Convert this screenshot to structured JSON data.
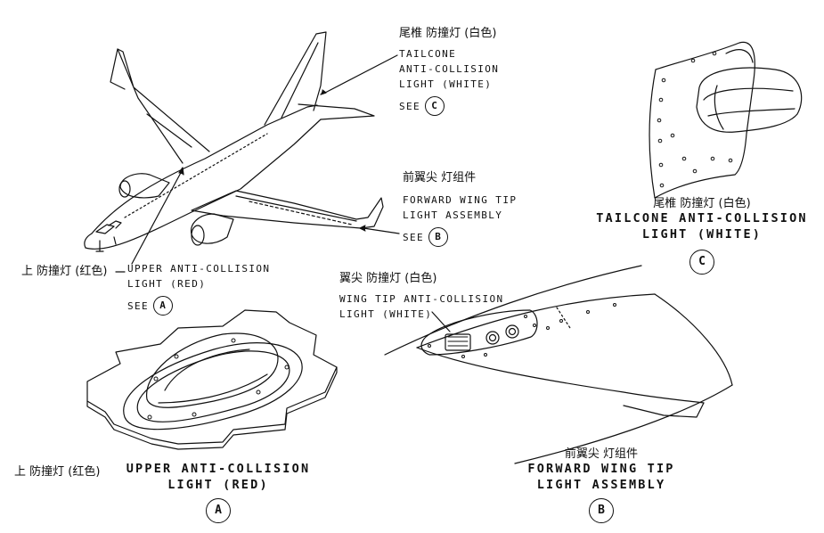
{
  "labels": {
    "tailcone_cn": "尾椎 防撞灯 (白色)",
    "tailcone_en_1": "TAILCONE",
    "tailcone_en_2": "ANTI-COLLISION",
    "tailcone_en_3": "LIGHT (WHITE)",
    "tailcone_see": "SEE",
    "tailcone_see_ref": "C",
    "fwd_cn": "前翼尖 灯组件",
    "fwd_en_1": "FORWARD WING TIP",
    "fwd_en_2": "LIGHT ASSEMBLY",
    "fwd_see": "SEE",
    "fwd_see_ref": "B",
    "upper_cn": "上 防撞灯 (红色)",
    "upper_en_1": "UPPER ANTI-COLLISION",
    "upper_en_2": "LIGHT (RED)",
    "upper_see": "SEE",
    "upper_see_ref": "A"
  },
  "views": {
    "c_cn": "尾椎 防撞灯 (白色)",
    "c_en_1": "TAILCONE ANTI-COLLISION",
    "c_en_2": "LIGHT (WHITE)",
    "c_ref": "C",
    "wingtip_cn": "翼尖 防撞灯 (白色)",
    "wingtip_en_1": "WING TIP ANTI-COLLISION",
    "wingtip_en_2": "LIGHT (WHITE)",
    "b_cn": "前翼尖 灯组件",
    "b_en_1": "FORWARD WING TIP",
    "b_en_2": "LIGHT ASSEMBLY",
    "b_ref": "B",
    "a_cn": "上 防撞灯 (红色)",
    "a_en_1": "UPPER ANTI-COLLISION",
    "a_en_2": "LIGHT (RED)",
    "a_ref": "A"
  }
}
